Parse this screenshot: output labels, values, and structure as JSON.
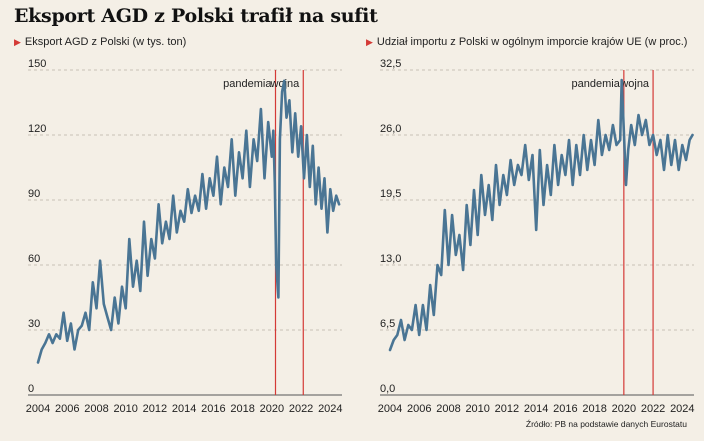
{
  "header": {
    "title": "Eksport AGD z Polski trafił na sufit"
  },
  "source": "Źródło: PB na podstawie danych Eurostatu",
  "colors": {
    "line": "#4a7594",
    "marker": "#d43a36",
    "grid": "#b9b3a8",
    "background": "#f4efe6"
  },
  "chart_data": [
    {
      "type": "line",
      "title": "Eksport AGD z Polski (w tys. ton)",
      "xlabel": "",
      "ylabel": "",
      "xlim": [
        2004,
        2024.8
      ],
      "ylim": [
        0,
        150
      ],
      "yticks": [
        0,
        30,
        60,
        90,
        120,
        150
      ],
      "ytick_labels": [
        "0",
        "30",
        "60",
        "90",
        "120",
        "150"
      ],
      "xticks": [
        2004,
        2006,
        2008,
        2010,
        2012,
        2014,
        2016,
        2018,
        2020,
        2022,
        2024
      ],
      "xtick_labels": [
        "2004",
        "2006",
        "2008",
        "2010",
        "2012",
        "2014",
        "2016",
        "2018",
        "2020",
        "2022",
        "2024"
      ],
      "grid": "horizontal dashed",
      "annotations": [
        {
          "label": "pandemia",
          "x": 2020.25
        },
        {
          "label": "wojna",
          "x": 2022.15
        }
      ],
      "series": [
        {
          "x": [
            2004.0,
            2004.25,
            2004.5,
            2004.75,
            2005.0,
            2005.25,
            2005.5,
            2005.75,
            2006.0,
            2006.25,
            2006.5,
            2006.75,
            2007.0,
            2007.25,
            2007.5,
            2007.75,
            2008.0,
            2008.25,
            2008.5,
            2008.75,
            2009.0,
            2009.25,
            2009.5,
            2009.75,
            2010.0,
            2010.25,
            2010.5,
            2010.75,
            2011.0,
            2011.25,
            2011.5,
            2011.75,
            2012.0,
            2012.25,
            2012.5,
            2012.75,
            2013.0,
            2013.25,
            2013.5,
            2013.75,
            2014.0,
            2014.25,
            2014.5,
            2014.75,
            2015.0,
            2015.25,
            2015.5,
            2015.75,
            2016.0,
            2016.25,
            2016.5,
            2016.75,
            2017.0,
            2017.25,
            2017.5,
            2017.75,
            2018.0,
            2018.25,
            2018.5,
            2018.75,
            2019.0,
            2019.25,
            2019.5,
            2019.75,
            2020.0,
            2020.1,
            2020.2,
            2020.3,
            2020.45,
            2020.55,
            2020.7,
            2020.85,
            2021.0,
            2021.2,
            2021.4,
            2021.6,
            2021.8,
            2022.0,
            2022.2,
            2022.4,
            2022.6,
            2022.8,
            2023.0,
            2023.2,
            2023.4,
            2023.6,
            2023.8,
            2024.0,
            2024.2,
            2024.4,
            2024.6
          ],
          "y": [
            15,
            21,
            24,
            28,
            24,
            28,
            26,
            38,
            25,
            33,
            21,
            30,
            32,
            38,
            30,
            52,
            40,
            62,
            42,
            36,
            30,
            45,
            33,
            50,
            40,
            72,
            50,
            62,
            48,
            80,
            55,
            72,
            63,
            88,
            70,
            80,
            72,
            92,
            75,
            85,
            80,
            95,
            84,
            92,
            85,
            102,
            86,
            100,
            92,
            110,
            88,
            105,
            96,
            118,
            92,
            112,
            100,
            122,
            96,
            118,
            108,
            132,
            100,
            126,
            110,
            122,
            98,
            60,
            45,
            118,
            140,
            145,
            128,
            136,
            112,
            130,
            110,
            124,
            100,
            120,
            96,
            115,
            88,
            105,
            86,
            100,
            75,
            95,
            85,
            92,
            88
          ]
        }
      ]
    },
    {
      "type": "line",
      "title": "Udział importu z Polski w ogólnym imporcie krajów UE (w proc.)",
      "xlabel": "",
      "ylabel": "",
      "xlim": [
        2004,
        2024.8
      ],
      "ylim": [
        0,
        32.5
      ],
      "yticks": [
        0,
        6.5,
        13,
        19.5,
        26,
        32.5
      ],
      "ytick_labels": [
        "0,0",
        "6,5",
        "13,0",
        "19,5",
        "26,0",
        "32,5"
      ],
      "xticks": [
        2004,
        2006,
        2008,
        2010,
        2012,
        2014,
        2016,
        2018,
        2020,
        2022,
        2024
      ],
      "xtick_labels": [
        "2004",
        "2006",
        "2008",
        "2010",
        "2012",
        "2014",
        "2016",
        "2018",
        "2020",
        "2022",
        "2024"
      ],
      "grid": "horizontal dashed",
      "annotations": [
        {
          "label": "pandemia",
          "x": 2020.0
        },
        {
          "label": "wojna",
          "x": 2022.0
        }
      ],
      "series": [
        {
          "x": [
            2004.0,
            2004.25,
            2004.5,
            2004.75,
            2005.0,
            2005.25,
            2005.5,
            2005.75,
            2006.0,
            2006.25,
            2006.5,
            2006.75,
            2007.0,
            2007.25,
            2007.5,
            2007.75,
            2008.0,
            2008.25,
            2008.5,
            2008.75,
            2009.0,
            2009.25,
            2009.5,
            2009.75,
            2010.0,
            2010.25,
            2010.5,
            2010.75,
            2011.0,
            2011.25,
            2011.5,
            2011.75,
            2012.0,
            2012.25,
            2012.5,
            2012.75,
            2013.0,
            2013.25,
            2013.5,
            2013.75,
            2014.0,
            2014.25,
            2014.5,
            2014.75,
            2015.0,
            2015.25,
            2015.5,
            2015.75,
            2016.0,
            2016.25,
            2016.5,
            2016.75,
            2017.0,
            2017.25,
            2017.5,
            2017.75,
            2018.0,
            2018.25,
            2018.5,
            2018.75,
            2019.0,
            2019.25,
            2019.5,
            2019.75,
            2019.85,
            2020.0,
            2020.15,
            2020.3,
            2020.5,
            2020.75,
            2021.0,
            2021.25,
            2021.5,
            2021.75,
            2022.0,
            2022.25,
            2022.5,
            2022.75,
            2023.0,
            2023.25,
            2023.5,
            2023.75,
            2024.0,
            2024.25,
            2024.5,
            2024.7
          ],
          "y": [
            4.5,
            5.5,
            6.0,
            7.5,
            5.5,
            7.0,
            6.5,
            9.0,
            6.0,
            9.0,
            6.5,
            11.0,
            8.0,
            13.0,
            12.0,
            18.5,
            13.0,
            18.0,
            14.0,
            16.0,
            12.5,
            19.0,
            15.0,
            20.5,
            16.0,
            22.0,
            18.0,
            21.0,
            17.5,
            23.0,
            19.0,
            22.0,
            20.0,
            23.5,
            21.0,
            23.0,
            22.0,
            25.0,
            21.5,
            24.0,
            16.5,
            24.5,
            19.0,
            23.0,
            20.0,
            25.0,
            21.0,
            24.0,
            22.0,
            25.5,
            21.0,
            25.0,
            22.0,
            26.0,
            22.5,
            25.5,
            23.0,
            27.5,
            24.0,
            26.0,
            24.5,
            27.0,
            25.0,
            25.5,
            31.5,
            26.5,
            21.0,
            24.5,
            27.0,
            25.0,
            28.0,
            26.0,
            27.5,
            25.0,
            26.0,
            24.0,
            25.5,
            22.5,
            26.0,
            23.0,
            25.5,
            22.5,
            25.0,
            23.5,
            25.5,
            26.0
          ]
        }
      ]
    }
  ]
}
